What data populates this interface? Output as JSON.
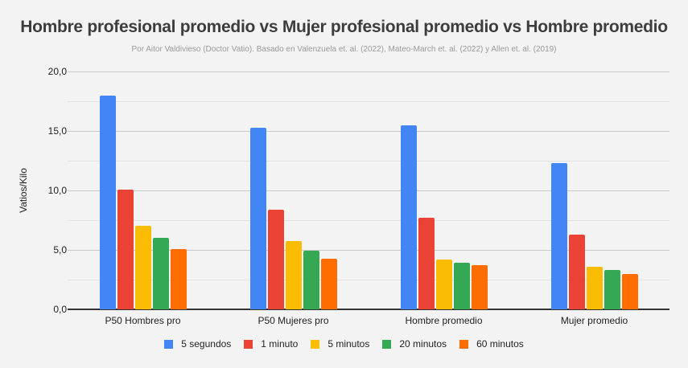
{
  "chart_data": {
    "type": "bar",
    "title": "Hombre profesional promedio vs Mujer profesional promedio vs Hombre promedio",
    "subtitle": "Por Aitor Valdivieso (Doctor Vatio). Basado en Valenzuela et. al. (2022), Mateo-March et. al. (2022) y Allen et. al. (2019)",
    "xlabel": "",
    "ylabel": "Vatios/Kilo",
    "ylim": [
      0,
      20
    ],
    "yticks": [
      "0,0",
      "5,0",
      "10,0",
      "15,0",
      "20,0"
    ],
    "grid": true,
    "legend_position": "bottom",
    "categories": [
      "P50 Hombres pro",
      "P50 Mujeres pro",
      "Hombre promedio",
      "Mujer promedio"
    ],
    "series": [
      {
        "name": "5 segundos",
        "color": "#4285f4",
        "values": [
          18.0,
          15.3,
          15.5,
          12.3
        ]
      },
      {
        "name": "1 minuto",
        "color": "#ea4335",
        "values": [
          10.1,
          8.4,
          7.7,
          6.3
        ]
      },
      {
        "name": "5 minutos",
        "color": "#fbbc04",
        "values": [
          7.0,
          5.75,
          4.2,
          3.6
        ]
      },
      {
        "name": "20 minutos",
        "color": "#34a853",
        "values": [
          6.0,
          4.95,
          3.9,
          3.3
        ]
      },
      {
        "name": "60 minutos",
        "color": "#ff6d01",
        "values": [
          5.1,
          4.25,
          3.7,
          3.0
        ]
      }
    ]
  }
}
